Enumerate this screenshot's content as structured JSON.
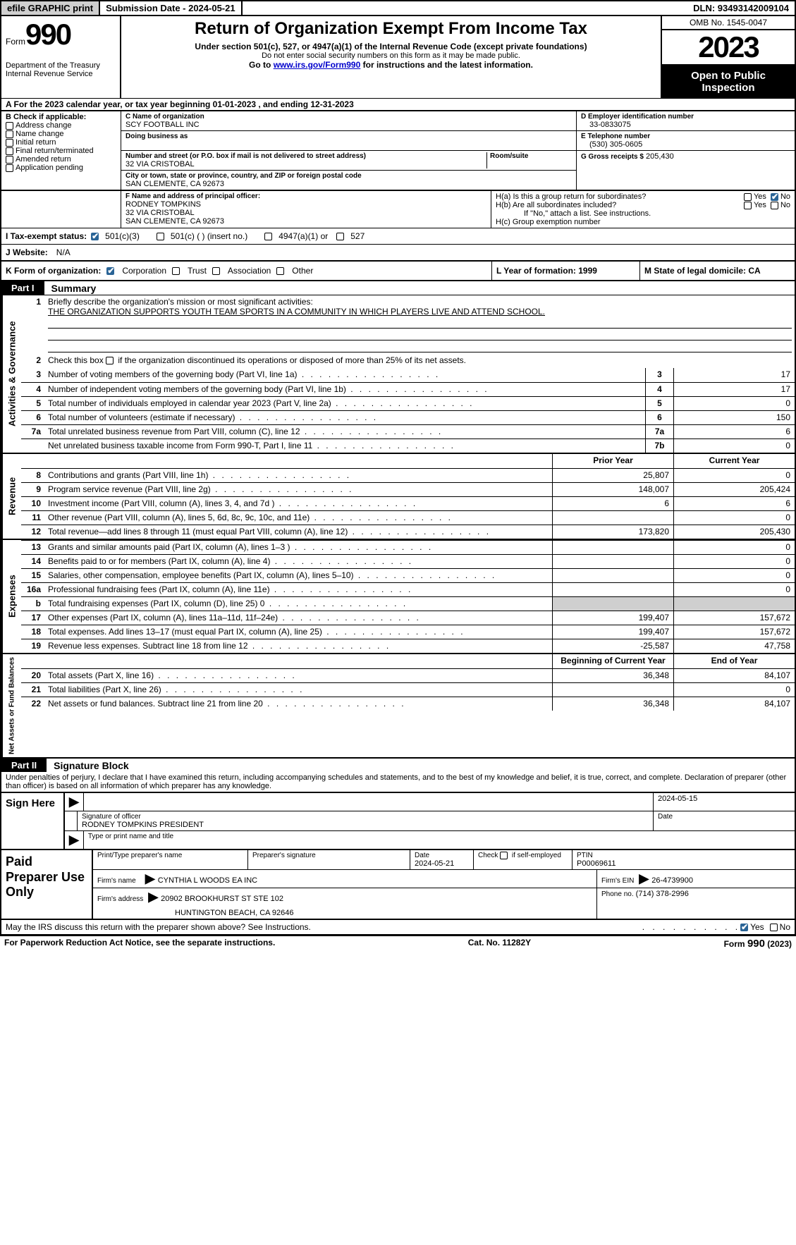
{
  "topbar": {
    "efile": "efile GRAPHIC print",
    "submission": "Submission Date - 2024-05-21",
    "dln": "DLN: 93493142009104"
  },
  "header": {
    "form_label": "Form",
    "form_number": "990",
    "dept": "Department of the Treasury",
    "irs": "Internal Revenue Service",
    "title": "Return of Organization Exempt From Income Tax",
    "sub1": "Under section 501(c), 527, or 4947(a)(1) of the Internal Revenue Code (except private foundations)",
    "sub2": "Do not enter social security numbers on this form as it may be made public.",
    "sub3_pre": "Go to ",
    "sub3_link": "www.irs.gov/Form990",
    "sub3_post": " for instructions and the latest information.",
    "omb": "OMB No. 1545-0047",
    "year": "2023",
    "open": "Open to Public Inspection"
  },
  "line_a": "A For the 2023 calendar year, or tax year beginning 01-01-2023    , and ending 12-31-2023",
  "box_b": {
    "title": "B Check if applicable:",
    "items": [
      "Address change",
      "Name change",
      "Initial return",
      "Final return/terminated",
      "Amended return",
      "Application pending"
    ]
  },
  "box_c": {
    "label": "C Name of organization",
    "name": "SCY FOOTBALL INC",
    "dba": "Doing business as",
    "addr_label": "Number and street (or P.O. box if mail is not delivered to street address)",
    "room": "Room/suite",
    "addr": "32 VIA CRISTOBAL",
    "city_label": "City or town, state or province, country, and ZIP or foreign postal code",
    "city": "SAN CLEMENTE, CA  92673"
  },
  "box_d": {
    "label": "D Employer identification number",
    "val": "33-0833075"
  },
  "box_e": {
    "label": "E Telephone number",
    "val": "(530) 305-0605"
  },
  "box_g": {
    "label": "G Gross receipts $",
    "val": "205,430"
  },
  "box_f": {
    "label": "F  Name and address of principal officer:",
    "name": "RODNEY TOMPKINS",
    "addr1": "32 VIA CRISTOBAL",
    "addr2": "SAN CLEMENTE, CA  92673"
  },
  "box_h": {
    "a": "H(a)  Is this a group return for subordinates?",
    "b": "H(b)  Are all subordinates included?",
    "b_note": "If \"No,\" attach a list. See instructions.",
    "c": "H(c)  Group exemption number"
  },
  "tax_status": {
    "label": "I   Tax-exempt status:",
    "opts": [
      "501(c)(3)",
      "501(c) (   ) (insert no.)",
      "4947(a)(1) or",
      "527"
    ]
  },
  "j": {
    "label": "J   Website:",
    "val": "N/A"
  },
  "k": {
    "label": "K Form of organization:",
    "opts": [
      "Corporation",
      "Trust",
      "Association",
      "Other"
    ]
  },
  "l": "L Year of formation: 1999",
  "m": "M State of legal domicile: CA",
  "part1": {
    "tag": "Part I",
    "title": "Summary",
    "brief_label": "Briefly describe the organization's mission or most significant activities:",
    "brief": "THE ORGANIZATION SUPPORTS YOUTH TEAM SPORTS IN A COMMUNITY IN WHICH PLAYERS LIVE AND ATTEND SCHOOL.",
    "line2": "Check this box      if the organization discontinued its operations or disposed of more than 25% of its net assets.",
    "vlabels": {
      "gov": "Activities & Governance",
      "rev": "Revenue",
      "exp": "Expenses",
      "net": "Net Assets or Fund Balances"
    },
    "gov_lines": [
      {
        "n": "3",
        "d": "Number of voting members of the governing body (Part VI, line 1a)",
        "box": "3",
        "v": "17"
      },
      {
        "n": "4",
        "d": "Number of independent voting members of the governing body (Part VI, line 1b)",
        "box": "4",
        "v": "17"
      },
      {
        "n": "5",
        "d": "Total number of individuals employed in calendar year 2023 (Part V, line 2a)",
        "box": "5",
        "v": "0"
      },
      {
        "n": "6",
        "d": "Total number of volunteers (estimate if necessary)",
        "box": "6",
        "v": "150"
      },
      {
        "n": "7a",
        "d": "Total unrelated business revenue from Part VIII, column (C), line 12",
        "box": "7a",
        "v": "6"
      },
      {
        "n": "",
        "d": "Net unrelated business taxable income from Form 990-T, Part I, line 11",
        "box": "7b",
        "v": "0"
      }
    ],
    "col_hdr": {
      "prior": "Prior Year",
      "curr": "Current Year"
    },
    "rev_lines": [
      {
        "n": "8",
        "d": "Contributions and grants (Part VIII, line 1h)",
        "p": "25,807",
        "c": "0"
      },
      {
        "n": "9",
        "d": "Program service revenue (Part VIII, line 2g)",
        "p": "148,007",
        "c": "205,424"
      },
      {
        "n": "10",
        "d": "Investment income (Part VIII, column (A), lines 3, 4, and 7d )",
        "p": "6",
        "c": "6"
      },
      {
        "n": "11",
        "d": "Other revenue (Part VIII, column (A), lines 5, 6d, 8c, 9c, 10c, and 11e)",
        "p": "",
        "c": "0"
      },
      {
        "n": "12",
        "d": "Total revenue—add lines 8 through 11 (must equal Part VIII, column (A), line 12)",
        "p": "173,820",
        "c": "205,430"
      }
    ],
    "exp_lines": [
      {
        "n": "13",
        "d": "Grants and similar amounts paid (Part IX, column (A), lines 1–3 )",
        "p": "",
        "c": "0"
      },
      {
        "n": "14",
        "d": "Benefits paid to or for members (Part IX, column (A), line 4)",
        "p": "",
        "c": "0"
      },
      {
        "n": "15",
        "d": "Salaries, other compensation, employee benefits (Part IX, column (A), lines 5–10)",
        "p": "",
        "c": "0"
      },
      {
        "n": "16a",
        "d": "Professional fundraising fees (Part IX, column (A), line 11e)",
        "p": "",
        "c": "0"
      },
      {
        "n": "b",
        "d": "Total fundraising expenses (Part IX, column (D), line 25) 0",
        "p": "GRAY",
        "c": "GRAY"
      },
      {
        "n": "17",
        "d": "Other expenses (Part IX, column (A), lines 11a–11d, 11f–24e)",
        "p": "199,407",
        "c": "157,672"
      },
      {
        "n": "18",
        "d": "Total expenses. Add lines 13–17 (must equal Part IX, column (A), line 25)",
        "p": "199,407",
        "c": "157,672"
      },
      {
        "n": "19",
        "d": "Revenue less expenses. Subtract line 18 from line 12",
        "p": "-25,587",
        "c": "47,758"
      }
    ],
    "net_hdr": {
      "b": "Beginning of Current Year",
      "e": "End of Year"
    },
    "net_lines": [
      {
        "n": "20",
        "d": "Total assets (Part X, line 16)",
        "p": "36,348",
        "c": "84,107"
      },
      {
        "n": "21",
        "d": "Total liabilities (Part X, line 26)",
        "p": "",
        "c": "0"
      },
      {
        "n": "22",
        "d": "Net assets or fund balances. Subtract line 21 from line 20",
        "p": "36,348",
        "c": "84,107"
      }
    ]
  },
  "part2": {
    "tag": "Part II",
    "title": "Signature Block",
    "intro": "Under penalties of perjury, I declare that I have examined this return, including accompanying schedules and statements, and to the best of my knowledge and belief, it is true, correct, and complete. Declaration of preparer (other than officer) is based on all information of which preparer has any knowledge.",
    "sign_here": "Sign Here",
    "sig_officer": "Signature of officer",
    "officer": "RODNEY TOMPKINS PRESIDENT",
    "type_name": "Type or print name and title",
    "date_label": "Date",
    "date1": "2024-05-15",
    "paid": "Paid Preparer Use Only",
    "prep_name_label": "Print/Type preparer's name",
    "prep_sig_label": "Preparer's signature",
    "prep_date_label": "Date",
    "prep_date": "2024-05-21",
    "self_emp": "Check        if self-employed",
    "ptin_label": "PTIN",
    "ptin": "P00069611",
    "firm_name_label": "Firm's name",
    "firm_name": "CYNTHIA L WOODS EA INC",
    "firm_ein_label": "Firm's EIN",
    "firm_ein": "26-4739900",
    "firm_addr_label": "Firm's address",
    "firm_addr1": "20902 BROOKHURST ST STE 102",
    "firm_addr2": "HUNTINGTON BEACH, CA  92646",
    "phone_label": "Phone no.",
    "phone": "(714) 378-2996",
    "discuss": "May the IRS discuss this return with the preparer shown above? See Instructions."
  },
  "footer": {
    "left": "For Paperwork Reduction Act Notice, see the separate instructions.",
    "mid": "Cat. No. 11282Y",
    "right": "Form 990 (2023)"
  },
  "yn": {
    "yes": "Yes",
    "no": "No"
  }
}
